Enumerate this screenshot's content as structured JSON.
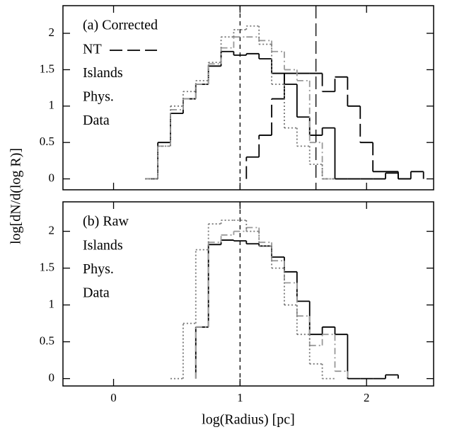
{
  "chart_data": [
    {
      "type": "histogram",
      "label": "(a) Corrected",
      "bins": [
        0.25,
        0.35,
        0.45,
        0.55,
        0.65,
        0.75,
        0.85,
        0.95,
        1.05,
        1.15,
        1.25,
        1.35,
        1.45,
        1.55,
        1.65,
        1.75,
        1.85,
        1.95,
        2.05,
        2.15,
        2.25,
        2.35,
        2.45
      ],
      "series": [
        {
          "name": "NT",
          "color": "#000000",
          "linestyle": "longdash",
          "legend_sample": true,
          "values": [
            null,
            null,
            null,
            null,
            null,
            null,
            null,
            null,
            0.3,
            0.6,
            1.1,
            1.45,
            1.45,
            1.45,
            1.2,
            1.4,
            1.0,
            0.5,
            0.1,
            0.1,
            0,
            0.1
          ]
        },
        {
          "name": "Islands",
          "color": "#000000",
          "linestyle": "solid",
          "legend_sample": false,
          "values": [
            0,
            0.5,
            0.9,
            1.1,
            1.3,
            1.55,
            1.75,
            1.7,
            1.72,
            1.65,
            1.45,
            1.3,
            0.85,
            0.6,
            0.7,
            0,
            0,
            0,
            0,
            0.08,
            0,
            null
          ]
        },
        {
          "name": "Phys.",
          "color": "#999999",
          "linestyle": "dashdot",
          "legend_sample": false,
          "values": [
            0,
            0.45,
            0.95,
            1.1,
            1.3,
            1.58,
            1.8,
            1.95,
            1.95,
            1.9,
            1.75,
            1.5,
            1.35,
            0.5,
            0,
            null,
            null,
            null,
            null,
            null,
            null,
            null
          ]
        },
        {
          "name": "Data",
          "color": "#777777",
          "linestyle": "dotted",
          "legend_sample": false,
          "values": [
            0,
            0.45,
            1.0,
            1.2,
            1.35,
            1.6,
            1.95,
            2.05,
            2.1,
            1.85,
            1.3,
            0.7,
            0.45,
            0.2,
            0,
            null,
            null,
            null,
            null,
            null,
            null,
            null
          ]
        }
      ],
      "reference_lines": [
        1,
        1.6
      ],
      "reference_line_styles": [
        "dashed",
        "longdash"
      ],
      "xlim": [
        -0.4,
        2.53
      ],
      "ylim": [
        -0.15,
        2.38
      ],
      "xticks": [
        0,
        1,
        2
      ],
      "yticks": [
        0,
        0.5,
        1,
        1.5,
        2
      ],
      "y_label": "log[dN/d(log R)]"
    },
    {
      "type": "histogram",
      "label": "(b) Raw",
      "bins": [
        0.25,
        0.35,
        0.45,
        0.55,
        0.65,
        0.75,
        0.85,
        0.95,
        1.05,
        1.15,
        1.25,
        1.35,
        1.45,
        1.55,
        1.65,
        1.75,
        1.85,
        1.95,
        2.05,
        2.15,
        2.25,
        2.35,
        2.45
      ],
      "series": [
        {
          "name": "Islands",
          "color": "#000000",
          "linestyle": "solid",
          "legend_sample": false,
          "values": [
            null,
            null,
            null,
            null,
            0.7,
            1.82,
            1.88,
            1.87,
            1.83,
            1.8,
            1.65,
            1.45,
            1.05,
            0.6,
            0.7,
            0.6,
            0,
            0,
            0,
            0.05,
            null,
            null
          ]
        },
        {
          "name": "Phys.",
          "color": "#999999",
          "linestyle": "dashdot",
          "legend_sample": false,
          "values": [
            null,
            null,
            null,
            null,
            0.7,
            1.85,
            1.95,
            2.0,
            2.05,
            1.85,
            1.6,
            1.3,
            0.85,
            0.45,
            0.6,
            0.1,
            null,
            null,
            null,
            null,
            null,
            null
          ]
        },
        {
          "name": "Data",
          "color": "#777777",
          "linestyle": "dotted",
          "legend_sample": false,
          "values": [
            null,
            null,
            0,
            0.75,
            1.75,
            2.1,
            2.15,
            2.15,
            2.0,
            1.8,
            1.5,
            1.0,
            0.6,
            0.2,
            0,
            null,
            null,
            null,
            null,
            null,
            null,
            null
          ]
        }
      ],
      "reference_lines": [
        1
      ],
      "reference_line_styles": [
        "dashed"
      ],
      "xlim": [
        -0.4,
        2.53
      ],
      "ylim": [
        -0.1,
        2.4
      ],
      "xticks": [
        0,
        1,
        2
      ],
      "yticks": [
        0,
        0.5,
        1,
        1.5,
        2
      ],
      "x_label": "log(Radius) [pc]"
    }
  ]
}
